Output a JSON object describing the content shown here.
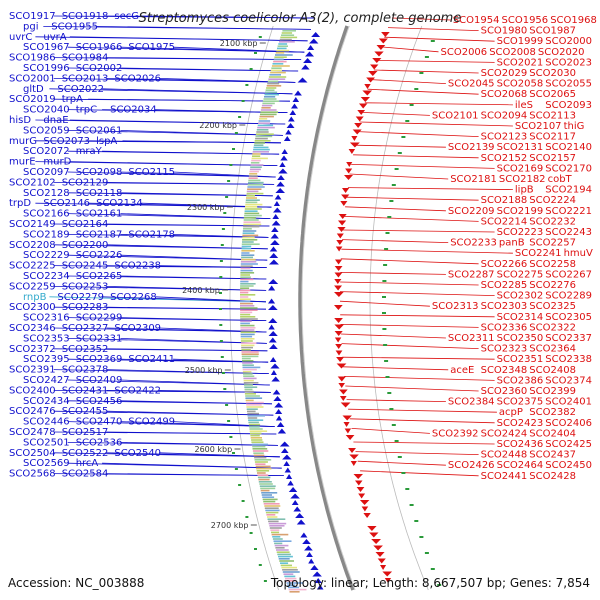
{
  "title": "Streptomyces coelicolor A3(2), complete genome",
  "footer": {
    "accession_label": "Accession: NC_003888",
    "summary": "Topology: linear; Length: 8,667,507 bp; Genes: 7,854"
  },
  "colors": {
    "plus_strand": "#1111cc",
    "minus_strand": "#dd1111",
    "rna_gene": "#33aacc",
    "axis": "#555555"
  },
  "scale_ticks": [
    "2100 kbp",
    "2200 kbp",
    "2300 kbp",
    "2400 kbp",
    "2500 kbp",
    "2600 kbp",
    "2700 kbp"
  ],
  "left_labels": [
    "SCO1917",
    "SCO1918",
    "secG",
    "pgi",
    "SCO1955",
    "uvrC",
    "uvrA",
    "SCO1967",
    "SCO1966",
    "SCO1975",
    "SCO1986",
    "SCO1984",
    "SCO1996",
    "SCO2002",
    "SCO2001",
    "SCO2013",
    "SCO2026",
    "gltD",
    "SCO2022",
    "SCO2019",
    "trpA",
    "SCO2040",
    "trpC",
    "SCO2034",
    "hisD",
    "dnaE",
    "SCO2059",
    "SCO2061",
    "murG",
    "SCO2073",
    "lspA",
    "SCO2072",
    "mraY",
    "murE",
    "murD",
    "SCO2097",
    "SCO2098",
    "SCO2115",
    "SCO2102",
    "SCO2129",
    "SCO2128",
    "SCO2118",
    "trpD",
    "SCO2146",
    "SCO2134",
    "SCO2166",
    "SCO2161",
    "SCO2149",
    "SCO2164",
    "SCO2189",
    "SCO2187",
    "SCO2178",
    "SCO2208",
    "SCO2200",
    "SCO2229",
    "SCO2226",
    "SCO2225",
    "SCO2245",
    "SCO2238",
    "SCO2234",
    "SCO2265",
    "SCO2259",
    "SCO2253",
    "rnpB",
    "SCO2279",
    "SCO2268",
    "SCO2300",
    "SCO2283",
    "SCO2316",
    "SCO2299",
    "SCO2346",
    "SCO2327",
    "SCO2309",
    "SCO2353",
    "SCO2331",
    "SCO2372",
    "SCO2352",
    "SCO2395",
    "SCO2369",
    "SCO2411",
    "SCO2391",
    "SCO2378",
    "SCO2427",
    "SCO2409",
    "SCO2400",
    "SCO2431",
    "SCO2422",
    "SCO2434",
    "SCO2456",
    "SCO2476",
    "SCO2455",
    "SCO2446",
    "SCO2470",
    "SCO2499",
    "SCO2478",
    "SCO2517",
    "SCO2501",
    "SCO2536",
    "SCO2504",
    "SCO2522",
    "SCO2540",
    "SCO2569",
    "hrcA",
    "SCO2568",
    "SCO2584"
  ],
  "right_labels": [
    "SCO1954",
    "SCO1956",
    "SCO1968",
    "SCO1980",
    "SCO1987",
    "SCO1999",
    "SCO2000",
    "SCO2006",
    "SCO2008",
    "SCO2020",
    "SCO2021",
    "SCO2023",
    "SCO2029",
    "SCO2030",
    "SCO2045",
    "SCO2058",
    "SCO2055",
    "SCO2068",
    "SCO2065",
    "ileS",
    "SCO2093",
    "SCO2101",
    "SCO2094",
    "SCO2113",
    "SCO2107",
    "thiG",
    "SCO2123",
    "SCO2117",
    "SCO2139",
    "SCO2131",
    "SCO2140",
    "SCO2152",
    "SCO2157",
    "SCO2169",
    "SCO2170",
    "SCO2181",
    "SCO2182",
    "cobT",
    "lipB",
    "SCO2194",
    "SCO2188",
    "SCO2224",
    "SCO2209",
    "SCO2199",
    "SCO2221",
    "SCO2214",
    "SCO2232",
    "SCO2223",
    "SCO2243",
    "SCO2233",
    "panB",
    "SCO2257",
    "SCO2241",
    "hmuV",
    "SCO2266",
    "SCO2258",
    "SCO2287",
    "SCO2275",
    "SCO2267",
    "SCO2285",
    "SCO2276",
    "SCO2302",
    "SCO2289",
    "SCO2313",
    "SCO2303",
    "SCO2325",
    "SCO2314",
    "SCO2305",
    "SCO2336",
    "SCO2322",
    "SCO2311",
    "SCO2350",
    "SCO2337",
    "SCO2323",
    "SCO2364",
    "SCO2351",
    "SCO2338",
    "aceE",
    "SCO2348",
    "SCO2408",
    "SCO2386",
    "SCO2374",
    "SCO2360",
    "SCO2399",
    "SCO2384",
    "SCO2375",
    "SCO2401",
    "acpP",
    "SCO2382",
    "SCO2423",
    "SCO2406",
    "SCO2392",
    "SCO2424",
    "SCO2404",
    "SCO2436",
    "SCO2425",
    "SCO2448",
    "SCO2437",
    "SCO2426",
    "SCO2464",
    "SCO2450",
    "SCO2441",
    "SCO2428"
  ]
}
